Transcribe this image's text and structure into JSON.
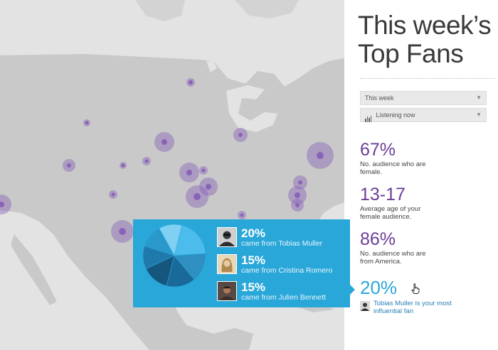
{
  "panel": {
    "title_line1": "This week’s",
    "title_line2": "Top Fans",
    "filter_period": "This week",
    "filter_mode": "Listening now"
  },
  "stats": [
    {
      "value": "67%",
      "description": "No. audience who are female."
    },
    {
      "value": "13-17",
      "description": "Average age of your female audience."
    },
    {
      "value": "86%",
      "description": "No. audience who are from America."
    },
    {
      "value": "20%",
      "description": "Tobias Muller is your most influential fan"
    }
  ],
  "popup": {
    "fans": [
      {
        "percent": "20%",
        "text": "came from Tobias Muller"
      },
      {
        "percent": "15%",
        "text": "came from Cristina Romero"
      },
      {
        "percent": "15%",
        "text": "came from Julien Bennett"
      }
    ]
  },
  "chart_data": {
    "type": "pie",
    "slices": [
      {
        "value": 20,
        "color": "#4bbcec"
      },
      {
        "value": 15,
        "color": "#2e8fc0"
      },
      {
        "value": 15,
        "color": "#1a6a99"
      },
      {
        "value": 14,
        "color": "#15567d"
      },
      {
        "value": 12,
        "color": "#1f7aab"
      },
      {
        "value": 12,
        "color": "#2a98cb"
      },
      {
        "value": 12,
        "color": "#7fd0f2"
      }
    ]
  },
  "colors": {
    "accent_purple": "#6b3d98",
    "accent_blue": "#2aa7d9",
    "map_land": "#c9c9c9",
    "map_water": "#e3e3e3",
    "hotspot": "#8a63b8"
  },
  "icons": {
    "period_chevron": "chevron-down-icon",
    "mode_chevron": "chevron-down-icon",
    "mode_icon": "bar-chart-icon",
    "cursor": "hand-pointer-icon"
  }
}
